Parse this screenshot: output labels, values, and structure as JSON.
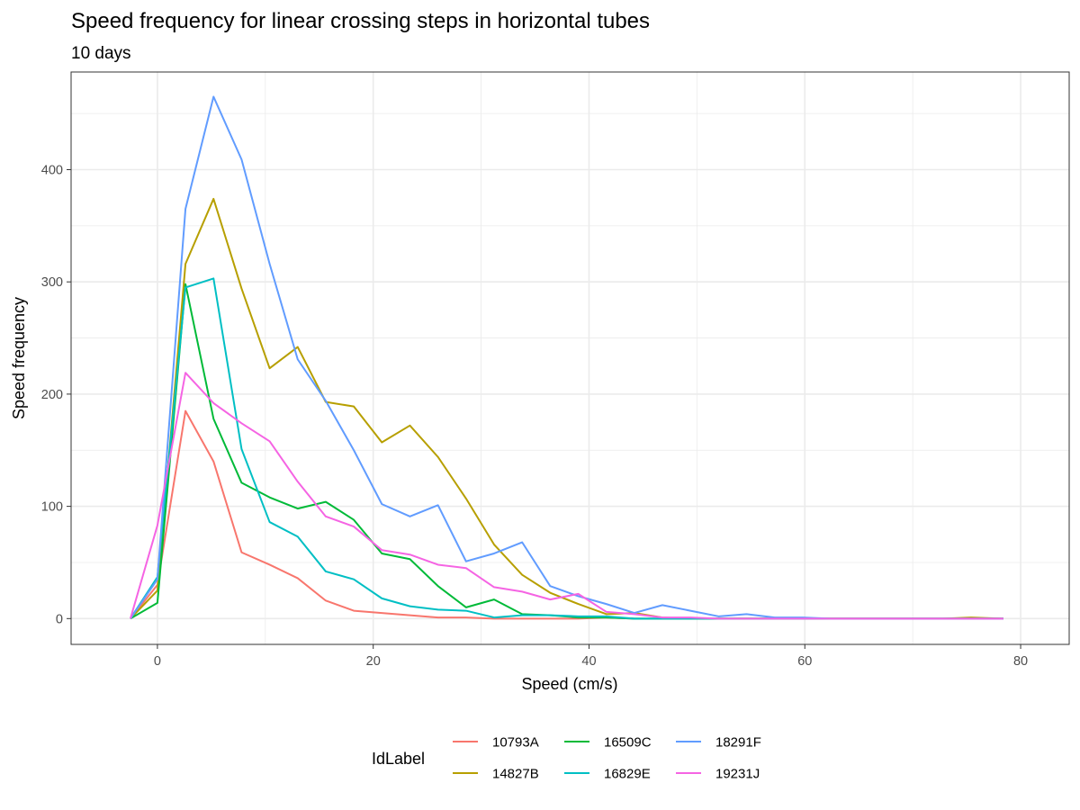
{
  "chart_data": {
    "type": "line",
    "title": "Speed frequency for linear crossing steps in horizontal tubes",
    "subtitle": "10  days",
    "xlabel": "Speed (cm/s)",
    "ylabel": "Speed frequency",
    "xlim": [
      -8,
      84.5
    ],
    "ylim": [
      -23,
      487
    ],
    "x_ticks": [
      0,
      20,
      40,
      60,
      80
    ],
    "y_ticks": [
      0,
      100,
      200,
      300,
      400
    ],
    "x_tick_labels": [
      "0",
      "20",
      "40",
      "60",
      "80"
    ],
    "y_tick_labels": [
      "0",
      "100",
      "200",
      "300",
      "400"
    ],
    "grid": true,
    "legend": {
      "title": "IdLabel",
      "position": "bottom"
    },
    "x": [
      -2.5,
      0,
      2.6,
      5.2,
      7.8,
      10.4,
      13,
      15.6,
      18.2,
      20.8,
      23.4,
      26,
      28.6,
      31.2,
      33.8,
      36.4,
      39,
      41.6,
      44.2,
      46.8,
      49.4,
      52,
      54.6,
      57.2,
      59.8,
      62.4,
      65,
      67.6,
      70.2,
      72.8,
      75.4,
      78.4
    ],
    "series": [
      {
        "name": "10793A",
        "color": "#F8766D",
        "values": [
          0,
          30,
          185,
          140,
          59,
          48,
          36,
          16,
          7,
          5,
          3,
          1,
          1,
          0,
          0,
          0,
          0,
          1,
          0,
          0,
          0,
          0,
          0,
          0,
          0,
          0,
          0,
          0,
          0,
          0,
          0,
          0
        ]
      },
      {
        "name": "14827B",
        "color": "#B79F00",
        "values": [
          0,
          25,
          316,
          374,
          294,
          223,
          242,
          193,
          189,
          157,
          172,
          144,
          107,
          66,
          39,
          23,
          13,
          4,
          5,
          1,
          0,
          0,
          0,
          0,
          0,
          0,
          0,
          0,
          0,
          0,
          1,
          0
        ]
      },
      {
        "name": "16509C",
        "color": "#00BA38",
        "values": [
          0,
          14,
          298,
          178,
          121,
          108,
          98,
          104,
          88,
          58,
          53,
          29,
          10,
          17,
          4,
          3,
          1,
          1,
          0,
          0,
          0,
          0,
          0,
          0,
          0,
          0,
          0,
          0,
          0,
          0,
          0,
          0
        ]
      },
      {
        "name": "16829E",
        "color": "#00BFC4",
        "values": [
          0,
          37,
          295,
          303,
          151,
          86,
          73,
          42,
          35,
          18,
          11,
          8,
          7,
          1,
          3,
          3,
          2,
          2,
          0,
          0,
          0,
          0,
          0,
          0,
          0,
          0,
          0,
          0,
          0,
          0,
          0,
          0
        ]
      },
      {
        "name": "18291F",
        "color": "#619CFF",
        "values": [
          0,
          35,
          365,
          465,
          409,
          316,
          231,
          194,
          150,
          102,
          91,
          101,
          51,
          58,
          68,
          29,
          20,
          13,
          5,
          12,
          7,
          2,
          4,
          1,
          1,
          0,
          0,
          0,
          0,
          0,
          0,
          0
        ]
      },
      {
        "name": "19231J",
        "color": "#F564E3",
        "values": [
          0,
          83,
          219,
          192,
          174,
          158,
          122,
          91,
          82,
          61,
          57,
          48,
          45,
          28,
          24,
          17,
          22,
          6,
          4,
          1,
          1,
          0,
          0,
          0,
          0,
          0,
          0,
          0,
          0,
          0,
          0,
          0
        ]
      }
    ]
  }
}
